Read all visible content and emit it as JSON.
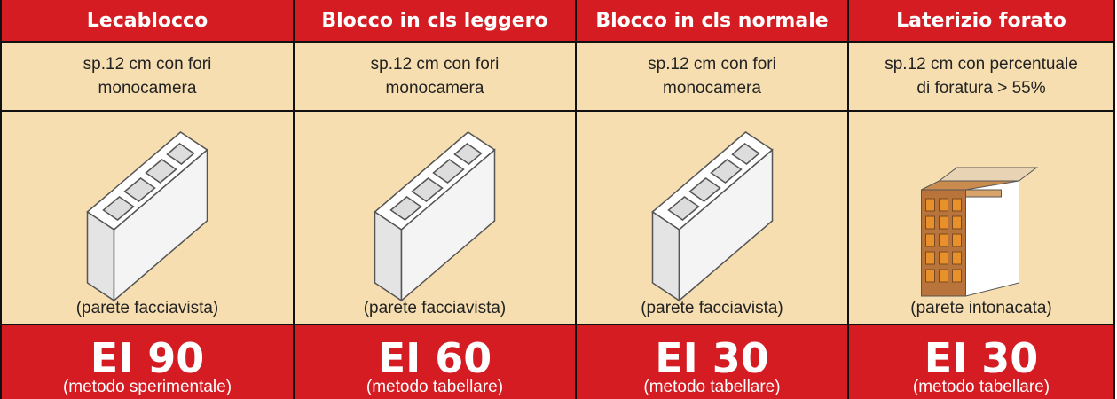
{
  "columns": [
    {
      "title": "Lecablocco",
      "description": [
        "sp.12 cm con fori",
        "monocamera"
      ],
      "caption": "(parete facciavista)",
      "rating": "EI 90",
      "method": "(metodo sperimentale)"
    },
    {
      "title": "Blocco in cls leggero",
      "description": [
        "sp.12 cm con fori",
        "monocamera"
      ],
      "caption": "(parete facciavista)",
      "rating": "EI 60",
      "method": "(metodo tabellare)"
    },
    {
      "title": "Blocco in cls normale",
      "description": [
        "sp.12 cm con fori",
        "monocamera"
      ],
      "caption": "(parete facciavista)",
      "rating": "EI 30",
      "method": "(metodo tabellare)"
    },
    {
      "title": "Laterizio forato",
      "description": [
        "sp.12 cm con percentuale",
        "di foratura > 55%"
      ],
      "caption": "(parete intonacata)",
      "rating": "EI 30",
      "method": "(metodo tabellare)"
    }
  ]
}
